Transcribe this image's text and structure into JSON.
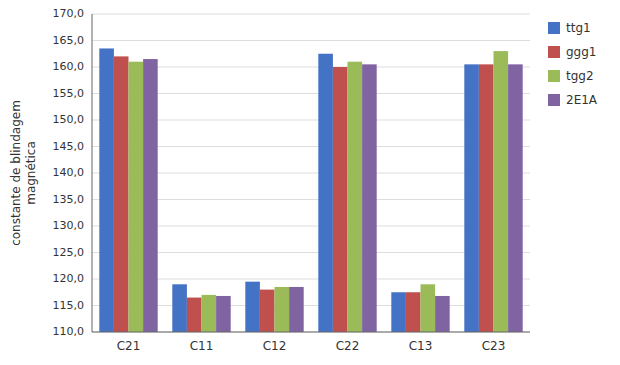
{
  "chart_data": {
    "type": "bar",
    "categories": [
      "C21",
      "C11",
      "C12",
      "C22",
      "C13",
      "C23"
    ],
    "series": [
      {
        "name": "ttg1",
        "color": "#4472C4",
        "values": [
          163.5,
          119.0,
          119.5,
          162.5,
          117.5,
          160.5
        ]
      },
      {
        "name": "ggg1",
        "color": "#C0504D",
        "values": [
          162.0,
          116.5,
          118.0,
          160.0,
          117.5,
          160.5
        ]
      },
      {
        "name": "tgg2",
        "color": "#9BBB59",
        "values": [
          161.0,
          117.0,
          118.5,
          161.0,
          119.0,
          163.0
        ]
      },
      {
        "name": "2E1A",
        "color": "#8064A2",
        "values": [
          161.5,
          116.8,
          118.5,
          160.5,
          116.8,
          160.5
        ]
      }
    ],
    "ylabel": "constante de blindagem\nmagnética",
    "ylim": [
      110.0,
      170.0
    ],
    "yticks": [
      {
        "value": 110.0,
        "label": "110,0"
      },
      {
        "value": 115.0,
        "label": "115,0"
      },
      {
        "value": 120.0,
        "label": "120,0"
      },
      {
        "value": 125.0,
        "label": "125,0"
      },
      {
        "value": 130.0,
        "label": "130,0"
      },
      {
        "value": 135.0,
        "label": "135,0"
      },
      {
        "value": 140.0,
        "label": "140,0"
      },
      {
        "value": 145.0,
        "label": "145,0"
      },
      {
        "value": 150.0,
        "label": "150,0"
      },
      {
        "value": 155.0,
        "label": "155,0"
      },
      {
        "value": 160.0,
        "label": "160,0"
      },
      {
        "value": 165.0,
        "label": "165,0"
      },
      {
        "value": 170.0,
        "label": "170,0"
      }
    ],
    "grid": true,
    "legend": "right"
  }
}
